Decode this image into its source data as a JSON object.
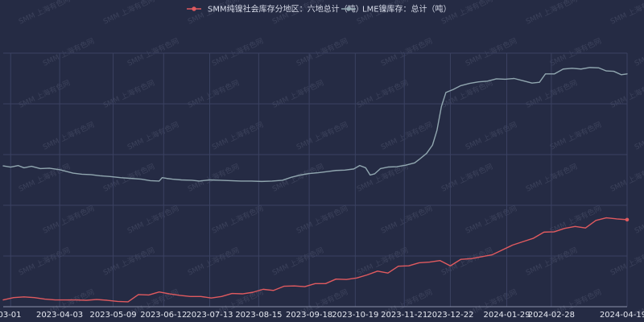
{
  "chart_data": {
    "type": "line",
    "title": "",
    "xlabel": "",
    "ylabel": "",
    "grid": "on",
    "legend_position": "top-center",
    "x_tick_labels": [
      "03-01",
      "2023-04-03",
      "2023-05-09",
      "2023-06-12",
      "2023-07-13",
      "2023-08-15",
      "2023-09-18",
      "2023-10-19",
      "2023-11-21",
      "2023-12-22",
      "2024-01-29",
      "2024-02-28",
      "2024-04-19"
    ],
    "watermark": "SMM 上海有色网",
    "series": [
      {
        "name": "SMM纯镍社会库存分地区：六地总计（吨）",
        "color": "#e05a5f",
        "marker": "circle",
        "points": [
          [
            "2023-02-24",
            8.8
          ],
          [
            "2023-03-03",
            9.4
          ],
          [
            "2023-03-10",
            9.6
          ],
          [
            "2023-03-17",
            9.4
          ],
          [
            "2023-03-24",
            9.0
          ],
          [
            "2023-03-31",
            8.8
          ],
          [
            "2023-04-07",
            8.8
          ],
          [
            "2023-04-14",
            8.8
          ],
          [
            "2023-04-21",
            8.7
          ],
          [
            "2023-04-28",
            8.9
          ],
          [
            "2023-05-05",
            8.7
          ],
          [
            "2023-05-12",
            8.4
          ],
          [
            "2023-05-19",
            8.3
          ],
          [
            "2023-05-26",
            10.2
          ],
          [
            "2023-06-02",
            10.1
          ],
          [
            "2023-06-09",
            10.9
          ],
          [
            "2023-06-16",
            10.4
          ],
          [
            "2023-06-23",
            10.0
          ],
          [
            "2023-06-30",
            9.7
          ],
          [
            "2023-07-07",
            9.7
          ],
          [
            "2023-07-14",
            9.3
          ],
          [
            "2023-07-21",
            9.7
          ],
          [
            "2023-07-28",
            10.5
          ],
          [
            "2023-08-04",
            10.4
          ],
          [
            "2023-08-11",
            10.8
          ],
          [
            "2023-08-18",
            11.6
          ],
          [
            "2023-08-25",
            11.3
          ],
          [
            "2023-09-01",
            12.4
          ],
          [
            "2023-09-08",
            12.5
          ],
          [
            "2023-09-15",
            12.3
          ],
          [
            "2023-09-22",
            13.1
          ],
          [
            "2023-09-29",
            13.1
          ],
          [
            "2023-10-06",
            14.3
          ],
          [
            "2023-10-13",
            14.2
          ],
          [
            "2023-10-20",
            14.6
          ],
          [
            "2023-10-27",
            15.4
          ],
          [
            "2023-11-03",
            16.4
          ],
          [
            "2023-11-10",
            15.9
          ],
          [
            "2023-11-17",
            17.7
          ],
          [
            "2023-11-24",
            17.8
          ],
          [
            "2023-12-01",
            18.6
          ],
          [
            "2023-12-08",
            18.8
          ],
          [
            "2023-12-15",
            19.2
          ],
          [
            "2023-12-22",
            17.8
          ],
          [
            "2023-12-29",
            19.5
          ],
          [
            "2024-01-05",
            19.7
          ],
          [
            "2024-01-12",
            20.2
          ],
          [
            "2024-01-19",
            20.7
          ],
          [
            "2024-01-26",
            22.0
          ],
          [
            "2024-02-02",
            23.3
          ],
          [
            "2024-02-09",
            24.2
          ],
          [
            "2024-02-16",
            25.1
          ],
          [
            "2024-02-23",
            26.7
          ],
          [
            "2024-03-01",
            26.8
          ],
          [
            "2024-03-08",
            27.7
          ],
          [
            "2024-03-15",
            28.2
          ],
          [
            "2024-03-22",
            27.8
          ],
          [
            "2024-03-29",
            29.8
          ],
          [
            "2024-04-05",
            30.5
          ],
          [
            "2024-04-12",
            30.2
          ],
          [
            "2024-04-19",
            30.0
          ]
        ]
      },
      {
        "name": "LME镍库存：总计（吨）",
        "color": "#91a7b0",
        "marker": "circle",
        "points": [
          [
            "2023-02-24",
            44.2
          ],
          [
            "2023-03-01",
            43.9
          ],
          [
            "2023-03-06",
            44.3
          ],
          [
            "2023-03-10",
            43.7
          ],
          [
            "2023-03-15",
            44.1
          ],
          [
            "2023-03-21",
            43.5
          ],
          [
            "2023-03-27",
            43.6
          ],
          [
            "2023-04-03",
            43.2
          ],
          [
            "2023-04-07",
            42.8
          ],
          [
            "2023-04-12",
            42.3
          ],
          [
            "2023-04-18",
            42.0
          ],
          [
            "2023-04-24",
            41.9
          ],
          [
            "2023-04-30",
            41.6
          ],
          [
            "2023-05-07",
            41.4
          ],
          [
            "2023-05-14",
            41.1
          ],
          [
            "2023-05-21",
            40.9
          ],
          [
            "2023-05-28",
            40.7
          ],
          [
            "2023-06-03",
            40.3
          ],
          [
            "2023-06-09",
            40.2
          ],
          [
            "2023-06-11",
            41.1
          ],
          [
            "2023-06-14",
            40.9
          ],
          [
            "2023-06-18",
            40.7
          ],
          [
            "2023-06-24",
            40.5
          ],
          [
            "2023-07-01",
            40.4
          ],
          [
            "2023-07-06",
            40.2
          ],
          [
            "2023-07-13",
            40.5
          ],
          [
            "2023-07-20",
            40.4
          ],
          [
            "2023-07-27",
            40.3
          ],
          [
            "2023-08-03",
            40.2
          ],
          [
            "2023-08-10",
            40.2
          ],
          [
            "2023-08-17",
            40.1
          ],
          [
            "2023-08-24",
            40.2
          ],
          [
            "2023-08-31",
            40.4
          ],
          [
            "2023-09-06",
            41.2
          ],
          [
            "2023-09-12",
            41.8
          ],
          [
            "2023-09-18",
            42.2
          ],
          [
            "2023-09-24",
            42.4
          ],
          [
            "2023-09-30",
            42.7
          ],
          [
            "2023-10-06",
            43.0
          ],
          [
            "2023-10-12",
            43.1
          ],
          [
            "2023-10-18",
            43.4
          ],
          [
            "2023-10-22",
            44.3
          ],
          [
            "2023-10-26",
            43.7
          ],
          [
            "2023-10-29",
            41.8
          ],
          [
            "2023-11-01",
            42.1
          ],
          [
            "2023-11-05",
            43.5
          ],
          [
            "2023-11-10",
            43.9
          ],
          [
            "2023-11-16",
            44.0
          ],
          [
            "2023-11-22",
            44.4
          ],
          [
            "2023-11-28",
            45.0
          ],
          [
            "2023-12-01",
            45.9
          ],
          [
            "2023-12-06",
            47.5
          ],
          [
            "2023-12-10",
            49.7
          ],
          [
            "2023-12-13",
            53.6
          ],
          [
            "2023-12-16",
            59.9
          ],
          [
            "2023-12-19",
            63.6
          ],
          [
            "2023-12-24",
            64.4
          ],
          [
            "2023-12-29",
            65.4
          ],
          [
            "2024-01-04",
            66.0
          ],
          [
            "2024-01-10",
            66.4
          ],
          [
            "2024-01-16",
            66.6
          ],
          [
            "2024-01-22",
            67.2
          ],
          [
            "2024-01-28",
            67.1
          ],
          [
            "2024-02-03",
            67.3
          ],
          [
            "2024-02-09",
            66.7
          ],
          [
            "2024-02-15",
            66.1
          ],
          [
            "2024-02-20",
            66.3
          ],
          [
            "2024-02-24",
            68.5
          ],
          [
            "2024-03-01",
            68.5
          ],
          [
            "2024-03-07",
            69.8
          ],
          [
            "2024-03-13",
            70.0
          ],
          [
            "2024-03-19",
            69.8
          ],
          [
            "2024-03-25",
            70.2
          ],
          [
            "2024-03-31",
            70.1
          ],
          [
            "2024-04-05",
            69.3
          ],
          [
            "2024-04-10",
            69.2
          ],
          [
            "2024-04-15",
            68.3
          ],
          [
            "2024-04-19",
            68.5
          ]
        ]
      }
    ]
  }
}
